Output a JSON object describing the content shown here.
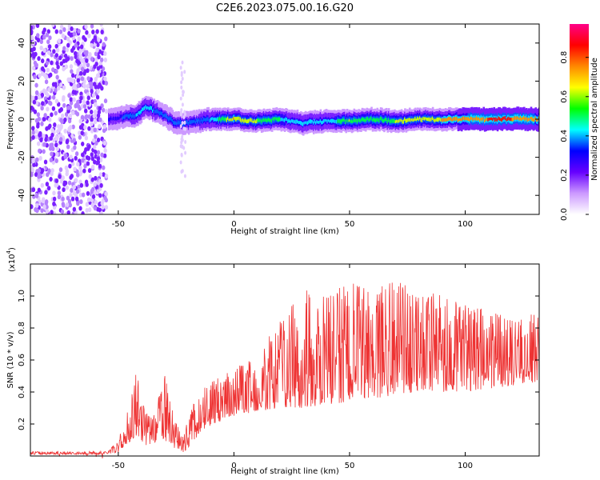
{
  "title": "C2E6.2023.075.00.16.G20",
  "chart_data": [
    {
      "type": "heatmap",
      "panel": "spectrogram",
      "xlabel": "Height of straight line (km)",
      "ylabel": "Frequency (Hz)",
      "xlim": [
        -88,
        132
      ],
      "ylim": [
        -50,
        50
      ],
      "xticks": [
        -50,
        0,
        50,
        100
      ],
      "xtick_labels": [
        "-50",
        "0",
        "50",
        "100"
      ],
      "yticks": [
        -40,
        -20,
        0,
        20,
        40
      ],
      "ytick_labels": [
        "-40",
        "-20",
        "0",
        "20",
        "40"
      ],
      "ridge": {
        "description_points_x": [
          -54,
          -48,
          -42,
          -38,
          -35,
          -30,
          -25,
          -20,
          -10,
          0,
          10,
          20,
          30,
          40,
          50,
          60,
          70,
          80,
          90,
          100,
          110,
          120,
          132
        ],
        "freq_hz": [
          0,
          1,
          2,
          7,
          5,
          2,
          -2,
          -2,
          0,
          0,
          -1,
          0,
          -2,
          -1,
          -1,
          0,
          -1,
          0,
          0,
          0,
          0,
          0,
          0
        ],
        "peak_normalized_amplitude": [
          0.3,
          0.4,
          0.5,
          0.55,
          0.5,
          0.4,
          0.4,
          0.4,
          0.5,
          0.8,
          0.7,
          0.6,
          0.5,
          0.5,
          0.7,
          0.6,
          0.7,
          0.75,
          0.8,
          0.85,
          0.9,
          0.9,
          0.85
        ]
      },
      "noise_region_x": [
        -88,
        -55
      ],
      "grid": false
    },
    {
      "type": "colorbar",
      "label": "Normalized spectral amplitude",
      "ylim": [
        0,
        0.97
      ],
      "ticks": [
        0.0,
        0.2,
        0.4,
        0.6,
        0.8
      ],
      "tick_labels": [
        "0.0",
        "0.2",
        "0.4",
        "0.6",
        "0.8"
      ],
      "colors": [
        "#ffffff",
        "#cc99ff",
        "#6600ff",
        "#0000ff",
        "#00ffff",
        "#00ff00",
        "#ffff00",
        "#ff8800",
        "#ff0000",
        "#ff0088"
      ]
    },
    {
      "type": "line",
      "panel": "snr",
      "xlabel": "Height of straight line (km)",
      "ylabel": "SNR (10 * v/v)",
      "multiplier_label": "(x10",
      "multiplier_exp": "4",
      "multiplier_close": ")",
      "xlim": [
        -88,
        132
      ],
      "ylim": [
        0,
        1.2
      ],
      "xticks": [
        -50,
        0,
        50,
        100
      ],
      "xtick_labels": [
        "-50",
        "0",
        "50",
        "100"
      ],
      "yticks": [
        0.2,
        0.4,
        0.6,
        0.8,
        1.0
      ],
      "ytick_labels": [
        "0.2",
        "0.4",
        "0.6",
        "0.8",
        "1.0"
      ],
      "color": "#ee3333",
      "envelope": {
        "x": [
          -88,
          -55,
          -50,
          -46,
          -42,
          -40,
          -36,
          -33,
          -30,
          -26,
          -22,
          -18,
          -12,
          -5,
          0,
          10,
          20,
          30,
          40,
          50,
          60,
          70,
          80,
          90,
          100,
          110,
          120,
          132
        ],
        "low": [
          0.01,
          0.01,
          0.02,
          0.08,
          0.12,
          0.08,
          0.05,
          0.1,
          0.1,
          0.02,
          0.02,
          0.08,
          0.18,
          0.22,
          0.25,
          0.28,
          0.3,
          0.3,
          0.32,
          0.34,
          0.36,
          0.38,
          0.4,
          0.4,
          0.4,
          0.42,
          0.44,
          0.46
        ],
        "high": [
          0.03,
          0.03,
          0.1,
          0.28,
          0.54,
          0.35,
          0.25,
          0.36,
          0.52,
          0.25,
          0.12,
          0.32,
          0.45,
          0.5,
          0.55,
          0.65,
          0.85,
          1.05,
          1.0,
          1.1,
          1.02,
          1.12,
          1.0,
          1.05,
          0.95,
          0.92,
          0.85,
          0.9
        ]
      },
      "grid": false
    }
  ]
}
